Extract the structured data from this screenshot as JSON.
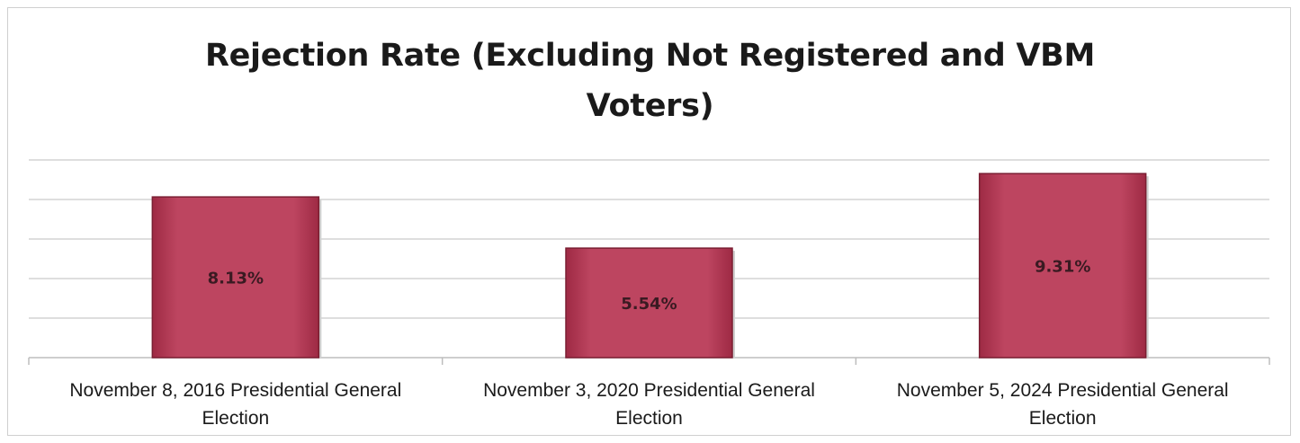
{
  "chart_data": {
    "type": "bar",
    "title": "Rejection Rate (Excluding Not Registered and VBM Voters)",
    "categories": [
      [
        "November 8, 2016 Presidential General",
        "Election"
      ],
      [
        "November 3, 2020 Presidential General",
        "Election"
      ],
      [
        "November 5, 2024 Presidential General",
        "Election"
      ]
    ],
    "values": [
      8.13,
      5.54,
      9.31
    ],
    "data_labels": [
      "8.13%",
      "5.54%",
      "9.31%"
    ],
    "ylim": [
      0,
      10
    ],
    "grid": true,
    "bar_color": "#b83a55",
    "bar_edge_color": "#7a1e32"
  }
}
